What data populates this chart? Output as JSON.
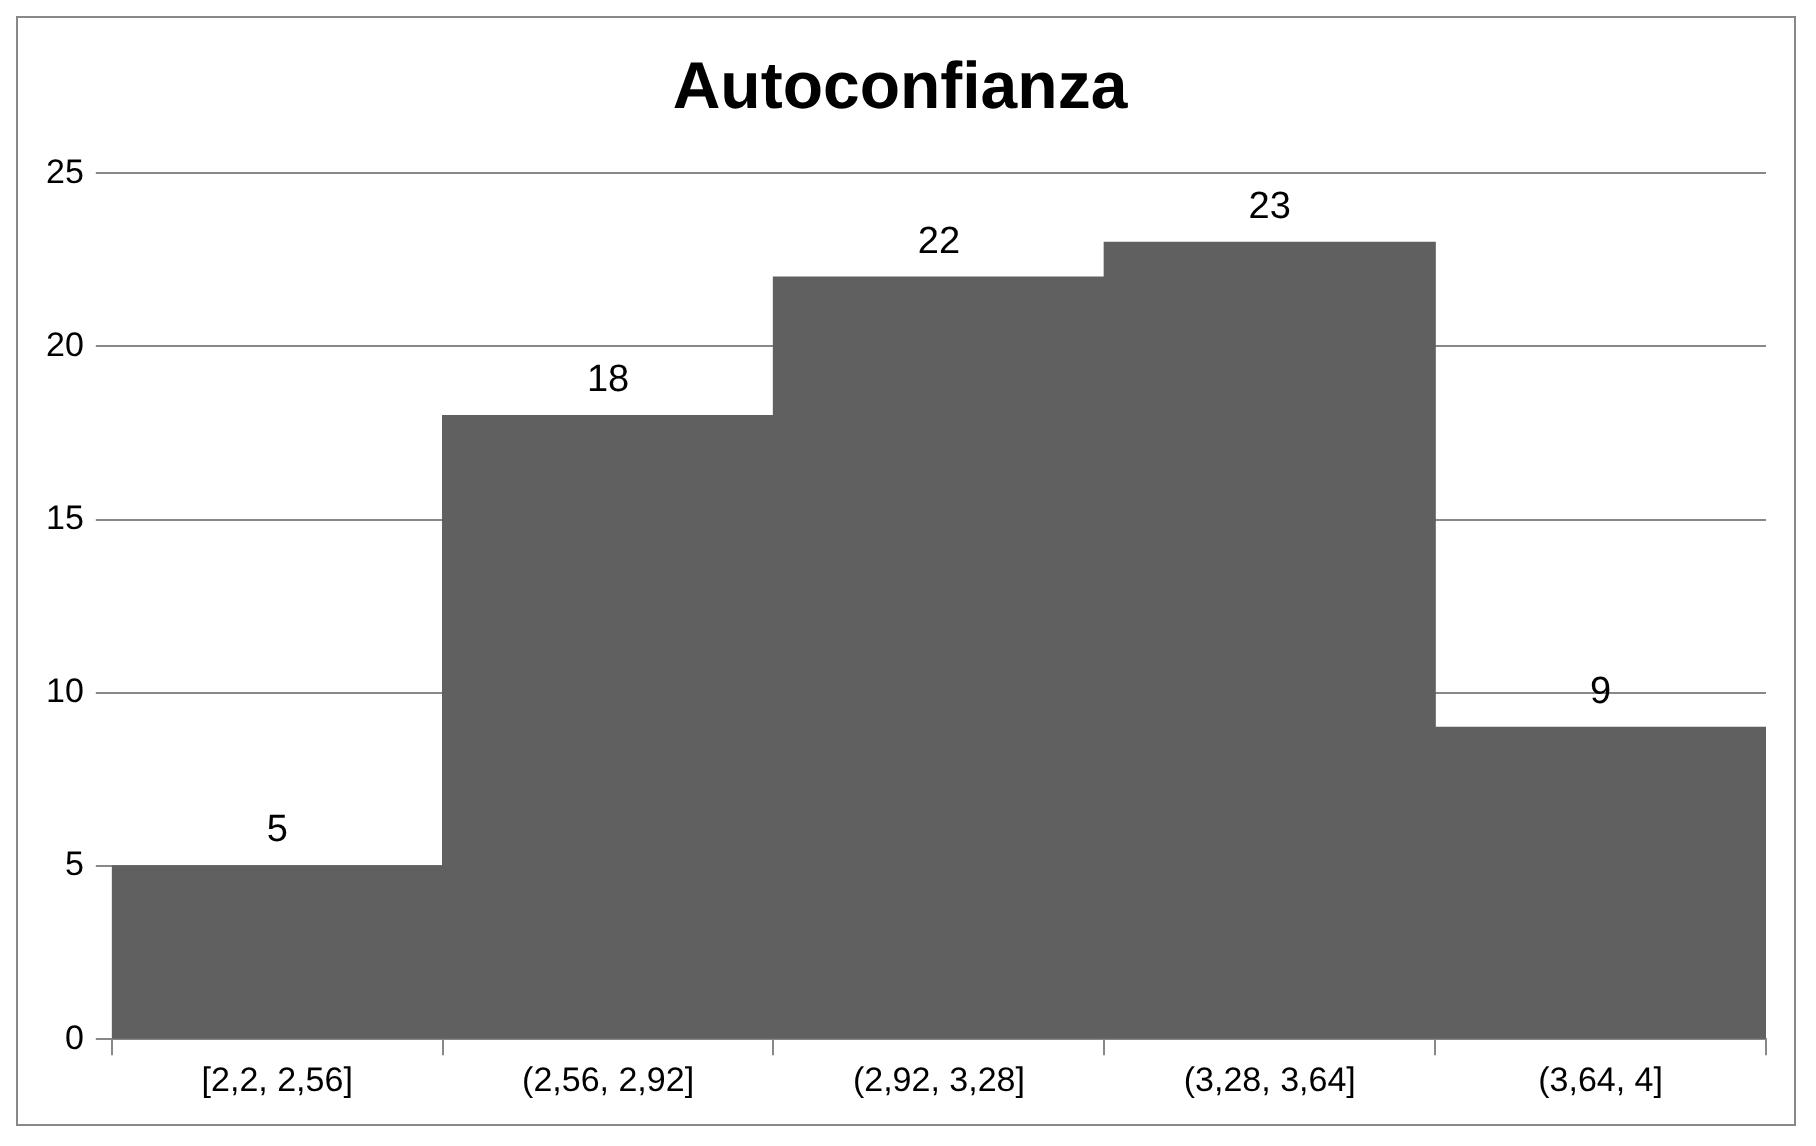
{
  "chart_data": {
    "type": "bar",
    "title": "Autoconfianza",
    "categories": [
      "[2,2, 2,56]",
      "(2,56, 2,92]",
      "(2,92, 3,28]",
      "(3,28, 3,64]",
      "(3,64, 4]"
    ],
    "values": [
      5,
      18,
      22,
      23,
      9
    ],
    "color": "#606060",
    "ylim": [
      0,
      25
    ],
    "yticks": [
      0,
      5,
      10,
      15,
      20,
      25
    ],
    "grid": "y",
    "data_labels": true,
    "legend": false
  }
}
